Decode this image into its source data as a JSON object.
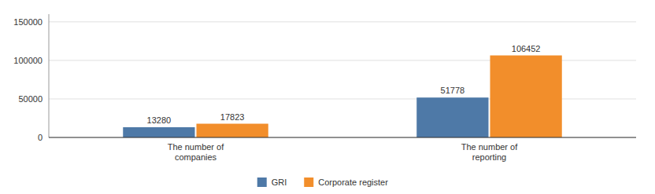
{
  "chart_data": {
    "type": "bar",
    "categories": [
      "The number of\ncompanies",
      "The number of\nreporting"
    ],
    "series": [
      {
        "name": "GRI",
        "values": [
          13280,
          51778
        ]
      },
      {
        "name": "Corporate register",
        "values": [
          17823,
          106452
        ]
      }
    ],
    "ylim": [
      0,
      160000
    ],
    "yticks": [
      0,
      50000,
      100000,
      150000
    ],
    "grid": true,
    "data_labels": true,
    "legend": "bottom"
  }
}
